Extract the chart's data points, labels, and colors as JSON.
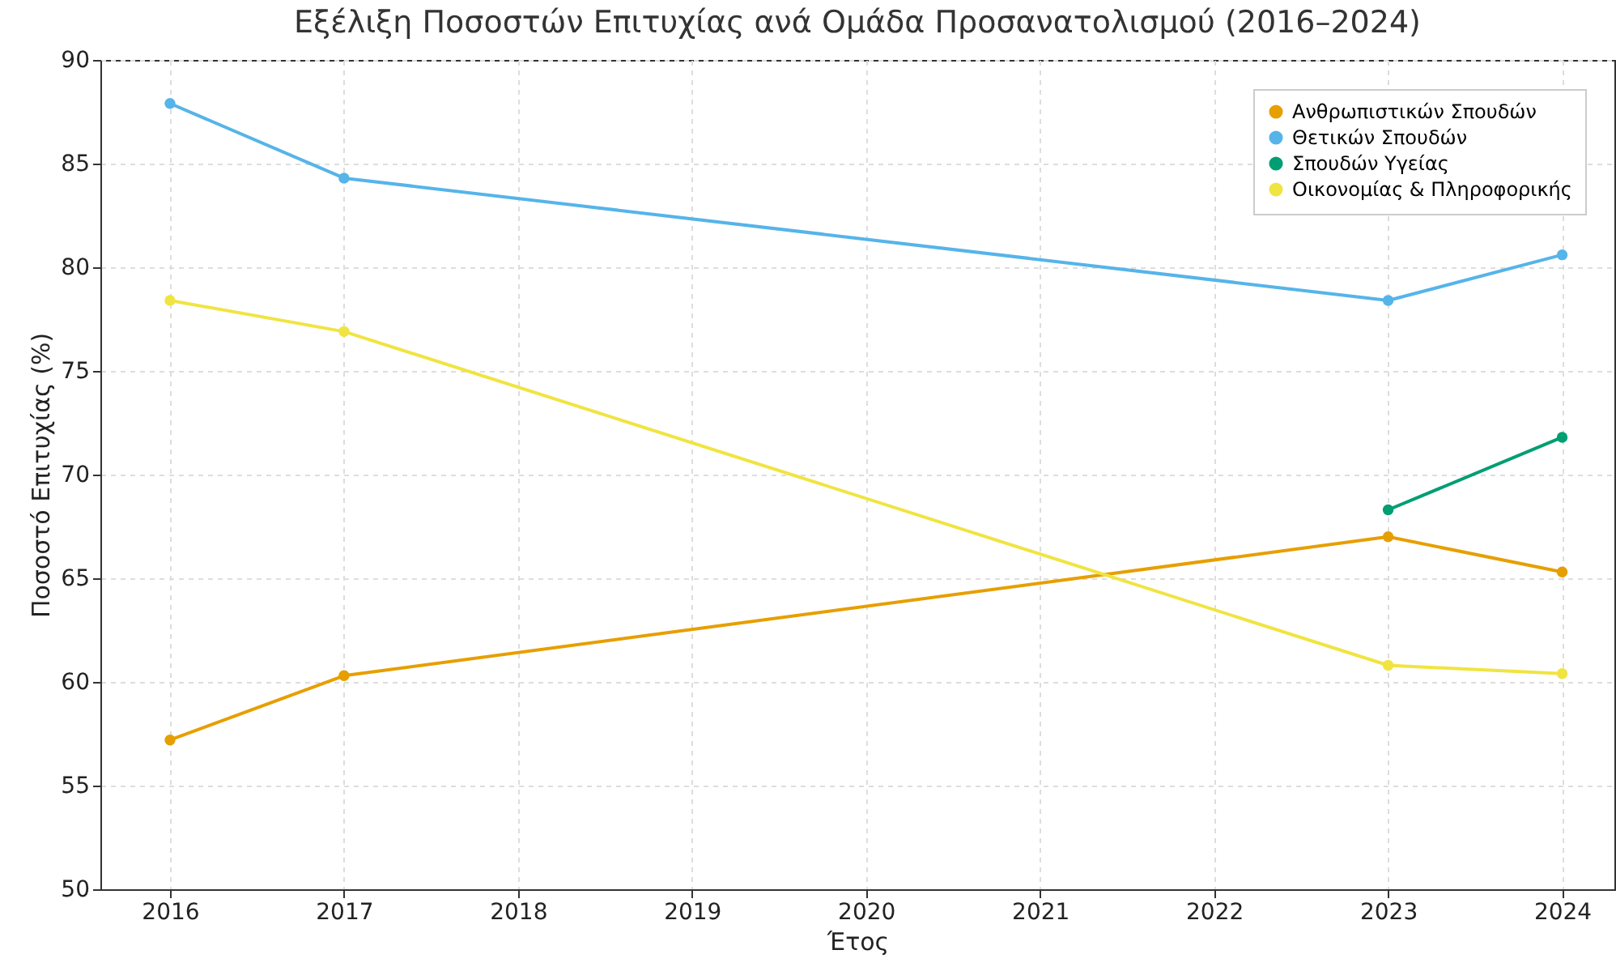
{
  "chart_data": {
    "type": "line",
    "title": "Εξέλιξη Ποσοστών Επιτυχίας ανά Ομάδα Προσανατολισμού (2016–2024)",
    "xlabel": "Έτος",
    "ylabel": "Ποσοστό Επιτυχίας (%)",
    "x": [
      2016,
      2017,
      2023,
      2024
    ],
    "series": [
      {
        "name": "Ανθρωπιστικών Σπουδών",
        "color": "#e69f00",
        "values": [
          57.2,
          60.3,
          67.0,
          65.3
        ]
      },
      {
        "name": "Θετικών Σπουδών",
        "color": "#56b4e9",
        "values": [
          87.9,
          84.3,
          78.4,
          80.6
        ]
      },
      {
        "name": "Σπουδών Υγείας",
        "color": "#009e73",
        "values": [
          null,
          null,
          68.3,
          71.8
        ]
      },
      {
        "name": "Οικονομίας & Πληροφορικής",
        "color": "#f0e442",
        "values": [
          78.4,
          76.9,
          60.8,
          60.4
        ]
      }
    ],
    "xlim": [
      2015.6,
      2024.3
    ],
    "xticks": [
      2016,
      2017,
      2018,
      2019,
      2020,
      2021,
      2022,
      2023,
      2024
    ],
    "ylim": [
      50,
      90
    ],
    "yticks": [
      50,
      55,
      60,
      65,
      70,
      75,
      80,
      85,
      90
    ],
    "grid": true,
    "legend": "top right",
    "marker": "circle",
    "line_style": "solid"
  }
}
